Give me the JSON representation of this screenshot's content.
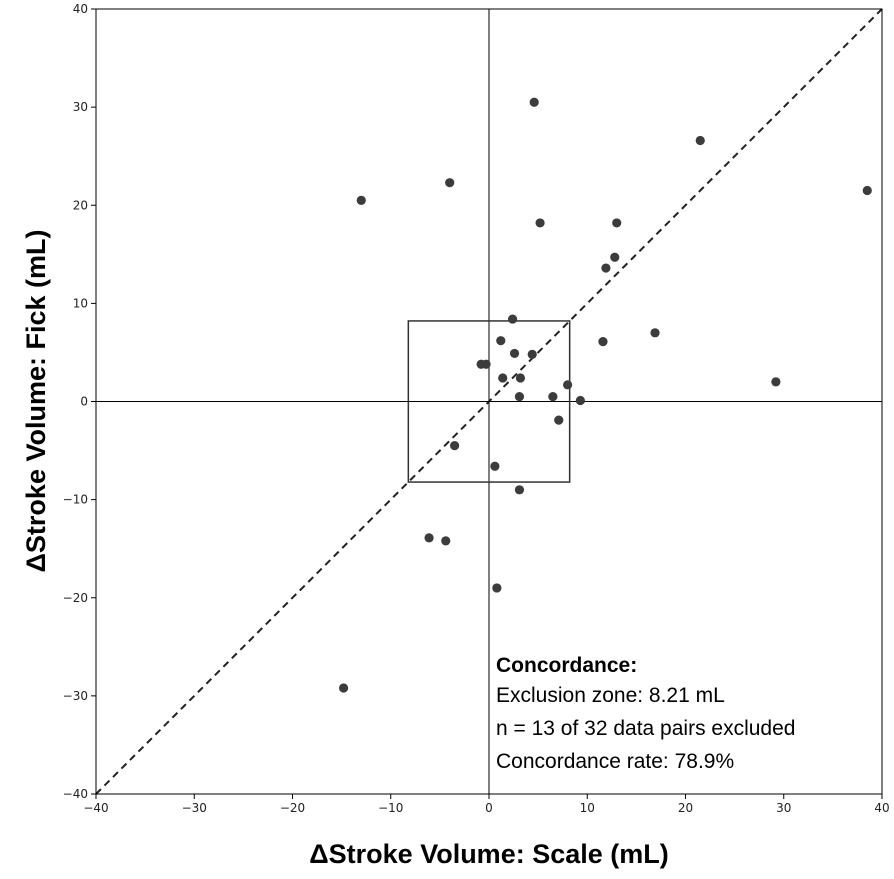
{
  "chart_data": {
    "type": "scatter",
    "title": "",
    "xlabel": "ΔStroke Volume: Scale (mL)",
    "ylabel": "ΔStroke Volume: Fick (mL)",
    "xlim": [
      -40,
      40
    ],
    "ylim": [
      -40,
      40
    ],
    "xticks": [
      -40,
      -30,
      -20,
      -10,
      0,
      10,
      20,
      30,
      40
    ],
    "yticks": [
      -40,
      -30,
      -20,
      -10,
      0,
      10,
      20,
      30,
      40
    ],
    "grid": false,
    "identity_line": true,
    "exclusion_zone": 8.21,
    "points": [
      {
        "x": 4.6,
        "y": 30.5
      },
      {
        "x": 21.5,
        "y": 26.6
      },
      {
        "x": -13.0,
        "y": 20.5
      },
      {
        "x": -4.0,
        "y": 22.3
      },
      {
        "x": 38.5,
        "y": 21.5
      },
      {
        "x": 5.2,
        "y": 18.2
      },
      {
        "x": 13.0,
        "y": 18.2
      },
      {
        "x": 12.8,
        "y": 14.7
      },
      {
        "x": 11.9,
        "y": 13.6
      },
      {
        "x": 2.4,
        "y": 8.4
      },
      {
        "x": 16.9,
        "y": 7.0
      },
      {
        "x": 1.2,
        "y": 6.2
      },
      {
        "x": 11.6,
        "y": 6.1
      },
      {
        "x": 2.6,
        "y": 4.9
      },
      {
        "x": 4.4,
        "y": 4.8
      },
      {
        "x": -0.8,
        "y": 3.8
      },
      {
        "x": -0.3,
        "y": 3.8
      },
      {
        "x": 1.4,
        "y": 2.4
      },
      {
        "x": 3.2,
        "y": 2.4
      },
      {
        "x": 29.2,
        "y": 2.0
      },
      {
        "x": 8.0,
        "y": 1.7
      },
      {
        "x": 6.5,
        "y": 0.5
      },
      {
        "x": 3.1,
        "y": 0.5
      },
      {
        "x": 9.3,
        "y": 0.1
      },
      {
        "x": 7.1,
        "y": -1.9
      },
      {
        "x": -3.5,
        "y": -4.5
      },
      {
        "x": 0.6,
        "y": -6.6
      },
      {
        "x": 3.1,
        "y": -9.0
      },
      {
        "x": -6.1,
        "y": -13.9
      },
      {
        "x": -4.4,
        "y": -14.2
      },
      {
        "x": 0.8,
        "y": -19.0
      },
      {
        "x": -14.8,
        "y": -29.2
      }
    ],
    "annotation": {
      "heading": "Concordance:",
      "lines": [
        "Exclusion zone: 8.21 mL",
        "n = 13 of 32 data pairs excluded",
        "Concordance rate: 78.9%"
      ]
    },
    "colors": {
      "point": "#3c3c3c",
      "axes": "#000000"
    }
  }
}
